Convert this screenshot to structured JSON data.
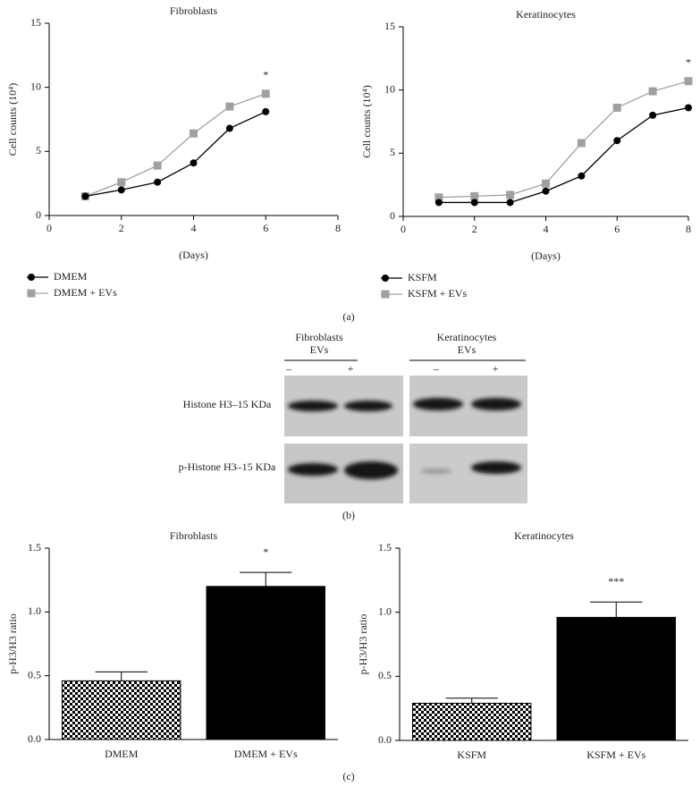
{
  "chart_data": [
    {
      "type": "line",
      "title": "Fibroblasts",
      "xlabel": "(Days)",
      "ylabel": "Cell counts (10⁴)",
      "x": [
        1,
        2,
        3,
        4,
        5,
        6
      ],
      "series": [
        {
          "name": "DMEM",
          "color": "#000000",
          "marker": "circle",
          "values": [
            1.5,
            2.0,
            2.6,
            4.1,
            6.8,
            8.1
          ]
        },
        {
          "name": "DMEM + EVs",
          "color": "#a0a0a0",
          "marker": "square",
          "values": [
            1.5,
            2.6,
            3.9,
            6.4,
            8.5,
            9.5
          ]
        }
      ],
      "annotations": [
        {
          "text": "*",
          "x": 6
        }
      ],
      "xlim": [
        0,
        8
      ],
      "xticks": [
        0,
        2,
        4,
        6,
        8
      ],
      "ylim": [
        0,
        15
      ],
      "yticks": [
        0,
        5,
        10,
        15
      ]
    },
    {
      "type": "line",
      "title": "Keratinocytes",
      "xlabel": "(Days)",
      "ylabel": "Cell counts (10⁴)",
      "x": [
        1,
        2,
        3,
        4,
        5,
        6,
        7,
        8
      ],
      "series": [
        {
          "name": "KSFM",
          "color": "#000000",
          "marker": "circle",
          "values": [
            1.1,
            1.1,
            1.1,
            2.0,
            3.2,
            6.0,
            8.0,
            8.6
          ]
        },
        {
          "name": "KSFM + EVs",
          "color": "#a0a0a0",
          "marker": "square",
          "values": [
            1.5,
            1.6,
            1.7,
            2.6,
            5.8,
            8.6,
            9.9,
            10.7
          ]
        }
      ],
      "annotations": [
        {
          "text": "*",
          "x": 8
        }
      ],
      "xlim": [
        0,
        8
      ],
      "xticks": [
        0,
        2,
        4,
        6,
        8
      ],
      "ylim": [
        0,
        15
      ],
      "yticks": [
        0,
        5,
        10,
        15
      ]
    },
    {
      "type": "bar",
      "title": "Fibroblasts",
      "ylabel": "p-H3/H3 ratio",
      "categories": [
        "DMEM",
        "DMEM + EVs"
      ],
      "values": [
        0.46,
        1.2
      ],
      "errors": [
        0.07,
        0.11
      ],
      "fills": [
        "checker",
        "#000000"
      ],
      "significance": [
        null,
        "*"
      ],
      "ylim": [
        0,
        1.5
      ],
      "yticks": [
        {
          "value": 0,
          "label": "0.0"
        },
        0.5,
        {
          "value": 1,
          "label": "1.0"
        },
        1.5
      ]
    },
    {
      "type": "bar",
      "title": "Keratinocytes",
      "ylabel": "p-H3/H3 ratio",
      "categories": [
        "KSFM",
        "KSFM + EVs"
      ],
      "values": [
        0.29,
        0.96
      ],
      "errors": [
        0.04,
        0.12
      ],
      "fills": [
        "checker",
        "#000000"
      ],
      "significance": [
        null,
        "***"
      ],
      "ylim": [
        0,
        1.5
      ],
      "yticks": [
        {
          "value": 0,
          "label": "0.0"
        },
        0.5,
        {
          "value": 1,
          "label": "1.0"
        },
        1.5
      ]
    }
  ],
  "panel_labels": [
    "(a)",
    "(b)",
    "(c)"
  ],
  "blot": {
    "groups": [
      {
        "name": "Fibroblasts",
        "sub": "EVs",
        "lanes": [
          "–",
          "+"
        ]
      },
      {
        "name": "Keratinocytes",
        "sub": "EVs",
        "lanes": [
          "–",
          "+"
        ]
      }
    ],
    "rows": [
      "Histone H3–15 KDa",
      "p-Histone H3–15 KDa"
    ]
  }
}
